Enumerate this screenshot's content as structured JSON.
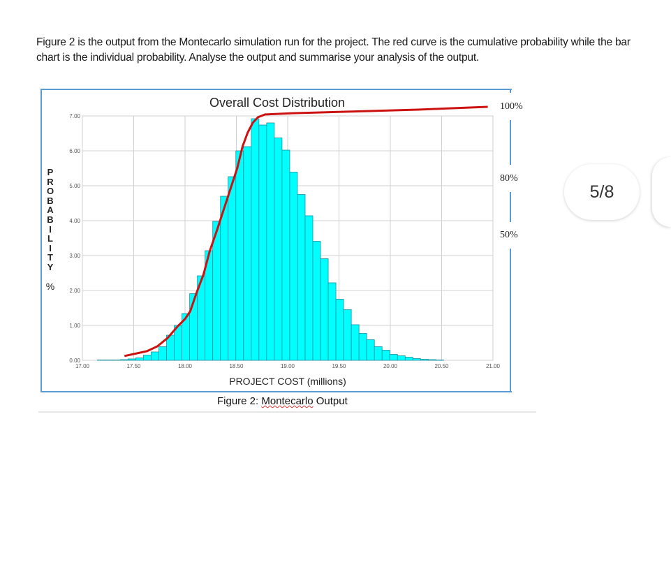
{
  "question": {
    "text": "Figure 2 is the output from the Montecarlo simulation run for the project. The red curve is the cumulative probability while the bar chart is the individual probability. Analyse the output and summarise your analysis of the output."
  },
  "figure": {
    "caption_prefix": "Figure 2: ",
    "caption_word": "Montecarlo",
    "caption_suffix": " Output"
  },
  "pager": {
    "label": "5/8"
  },
  "colors": {
    "bars": "#00ffff",
    "bar_edge": "#1a8fa0",
    "curve": "#cc1111",
    "frame": "#5b9bd5",
    "grid": "#d0d0d0"
  },
  "chart_data": {
    "type": "bar",
    "title": "Overall Cost Distribution",
    "xlabel": "PROJECT COST (millions)",
    "ylabel": "PROBABILITY",
    "ylabel_unit": "%",
    "xlim": [
      17.0,
      21.0
    ],
    "ylim": [
      0,
      7
    ],
    "grid": true,
    "x_ticks": [
      "17.00",
      "17.50",
      "18.00",
      "18.50",
      "19.00",
      "19.50",
      "20.00",
      "20.50",
      "21.00"
    ],
    "y_ticks": [
      "0.00",
      "1.00",
      "2.00",
      "3.00",
      "4.00",
      "5.00",
      "6.00",
      "7.00"
    ],
    "right_labels": [
      "100%",
      "80%",
      "50%"
    ],
    "bin_width": 0.075,
    "bin_starts": [
      17.145,
      17.22,
      17.295,
      17.37,
      17.445,
      17.52,
      17.595,
      17.67,
      17.745,
      17.82,
      17.895,
      17.97,
      18.045,
      18.12,
      18.195,
      18.27,
      18.345,
      18.42,
      18.495,
      18.57,
      18.645,
      18.72,
      18.795,
      18.87,
      18.945,
      19.02,
      19.095,
      19.17,
      19.245,
      19.32,
      19.395,
      19.47,
      19.545,
      19.62,
      19.695,
      19.77,
      19.845,
      19.92,
      19.995,
      20.07,
      20.145,
      20.22,
      20.295,
      20.37,
      20.445
    ],
    "values": [
      0.01,
      0.01,
      0.01,
      0.02,
      0.04,
      0.07,
      0.15,
      0.24,
      0.39,
      0.72,
      1.0,
      1.34,
      1.91,
      2.42,
      3.14,
      3.98,
      4.7,
      5.26,
      6.0,
      6.12,
      6.92,
      6.74,
      6.8,
      6.37,
      6.02,
      5.39,
      4.75,
      4.14,
      3.41,
      2.91,
      2.22,
      1.75,
      1.45,
      1.02,
      0.77,
      0.59,
      0.39,
      0.29,
      0.17,
      0.13,
      0.09,
      0.05,
      0.03,
      0.02,
      0.01
    ],
    "cumulative": {
      "x": [
        17.41,
        17.63,
        17.73,
        17.83,
        17.93,
        18.0,
        18.05,
        18.11,
        18.18,
        18.24,
        18.31,
        18.41,
        18.51,
        18.56,
        18.61,
        18.66,
        18.71,
        18.78,
        19.05,
        19.59,
        20.27,
        20.95
      ],
      "percent": [
        1.7,
        3.6,
        5.5,
        8.8,
        13.5,
        16.3,
        19.3,
        26.4,
        33.9,
        43.0,
        51.2,
        63.6,
        76.0,
        84.3,
        89.8,
        93.7,
        95.9,
        97.0,
        97.5,
        98.1,
        98.9,
        100
      ]
    }
  }
}
